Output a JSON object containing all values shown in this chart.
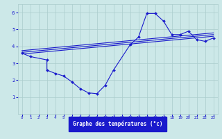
{
  "line1_x": [
    0,
    1,
    3,
    3,
    4,
    5,
    6,
    7,
    8,
    9,
    10,
    11,
    13,
    14,
    15,
    16,
    17,
    18,
    19,
    20,
    21,
    22,
    23
  ],
  "line1_y": [
    3.6,
    3.4,
    3.2,
    2.6,
    2.4,
    2.25,
    1.9,
    1.5,
    1.25,
    1.2,
    1.7,
    2.6,
    4.1,
    4.55,
    5.95,
    5.95,
    5.5,
    4.7,
    4.7,
    4.9,
    4.4,
    4.3,
    4.5
  ],
  "trend1_x": [
    0,
    23
  ],
  "trend1_y": [
    3.55,
    4.6
  ],
  "trend2_x": [
    0,
    23
  ],
  "trend2_y": [
    3.65,
    4.7
  ],
  "trend3_x": [
    0,
    23
  ],
  "trend3_y": [
    3.75,
    4.8
  ],
  "line_color": "#1a1acc",
  "bg_color": "#cce8e8",
  "grid_color": "#aacccc",
  "xlabel": "Graphe des températures (°c)",
  "xlabel_bg": "#1a1acc",
  "xlabel_color": "#ffffff",
  "ylim": [
    0,
    6.5
  ],
  "xlim": [
    -0.5,
    23.5
  ],
  "yticks": [
    1,
    2,
    3,
    4,
    5,
    6
  ],
  "xticks": [
    0,
    1,
    2,
    3,
    4,
    5,
    6,
    7,
    8,
    9,
    10,
    11,
    12,
    13,
    14,
    15,
    16,
    17,
    18,
    19,
    20,
    21,
    22,
    23
  ]
}
